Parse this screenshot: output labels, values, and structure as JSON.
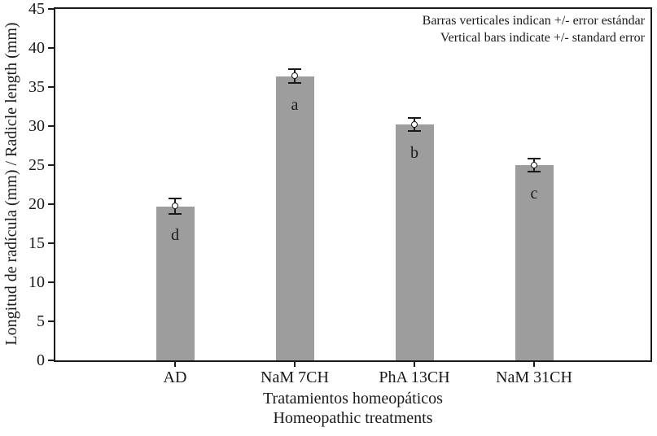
{
  "figure": {
    "background": "#ffffff"
  },
  "chart_data": {
    "type": "bar",
    "categories": [
      "AD",
      "NaM 7CH",
      "PhA 13CH",
      "NaM 31CH"
    ],
    "values": [
      19.7,
      36.4,
      30.2,
      25.0
    ],
    "errors": [
      1.0,
      0.9,
      0.8,
      0.8
    ],
    "bar_letters": [
      "d",
      "a",
      "b",
      "c"
    ],
    "ylabel": "Longitud de radícula (mm) / Radicle length (mm)",
    "xlabel_line1": "Tratamientos homeopáticos",
    "xlabel_line2": "Homeopathic treatments",
    "annotation_line1": "Barras verticales indican +/- error estándar",
    "annotation_line2": "Vertical bars indicate +/- standard error",
    "ylim": [
      0,
      45
    ],
    "ytick_step": 5,
    "yticks": [
      0,
      5,
      10,
      15,
      20,
      25,
      30,
      35,
      40,
      45
    ],
    "grid": false,
    "legend_position": "top-right-inside",
    "marker": "open-circle",
    "colors": {
      "bar": "#9d9d9d",
      "axis": "#1a1a1a",
      "text": "#1a1a1a",
      "marker_fill": "#ffffff"
    }
  }
}
